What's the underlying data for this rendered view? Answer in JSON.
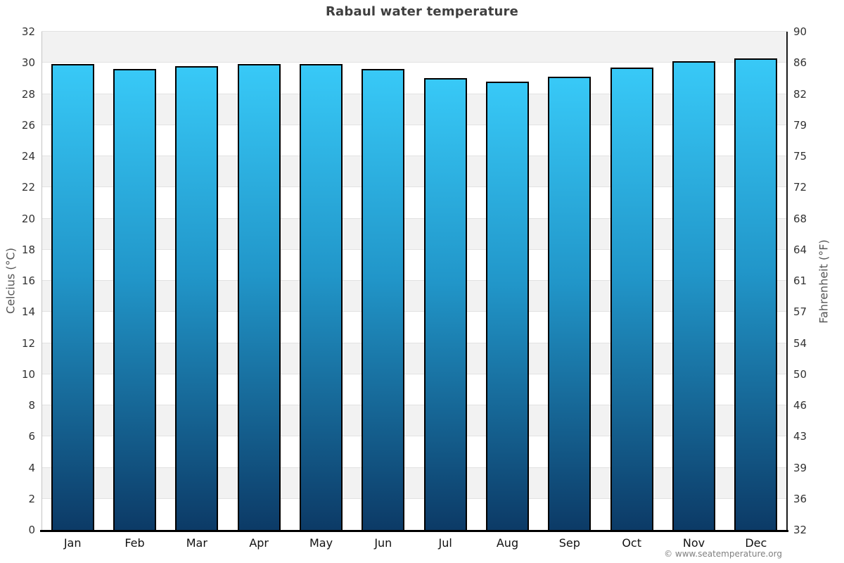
{
  "title": "Rabaul water temperature",
  "copyright": "© www.seatemperature.org",
  "chart_data": {
    "type": "bar",
    "title": "Rabaul water temperature",
    "categories": [
      "Jan",
      "Feb",
      "Mar",
      "Apr",
      "May",
      "Jun",
      "Jul",
      "Aug",
      "Sep",
      "Oct",
      "Nov",
      "Dec"
    ],
    "values": [
      29.9,
      29.6,
      29.8,
      29.9,
      29.9,
      29.6,
      29.0,
      28.8,
      29.1,
      29.7,
      30.1,
      30.3
    ],
    "unit": "°C",
    "ylabel_left": "Celcius (°C)",
    "ylabel_right": "Fahrenheit (°F)",
    "ylim": [
      0,
      32
    ],
    "ytick_step": 2,
    "celsius_ticks": [
      "32",
      "30",
      "28",
      "26",
      "24",
      "22",
      "20",
      "18",
      "16",
      "14",
      "12",
      "10",
      "8",
      "6",
      "4",
      "2",
      "0"
    ],
    "fahrenheit_ticks": [
      "90",
      "86",
      "82",
      "79",
      "75",
      "72",
      "68",
      "64",
      "61",
      "57",
      "54",
      "50",
      "46",
      "43",
      "39",
      "36",
      "32"
    ],
    "legend": "none",
    "grid": "banded",
    "colors": {
      "bar_top": "#38c9f7",
      "bar_mid": "#2196c9",
      "bar_bottom": "#0c3a66",
      "bar_border": "#000000",
      "band": "#f2f2f2",
      "gridline": "#e2e2e2",
      "title_text": "#3f3f3f",
      "tick_text": "#333333",
      "month_text": "#111111",
      "axis_title_text": "#555555",
      "copyright_text": "#808080"
    }
  }
}
